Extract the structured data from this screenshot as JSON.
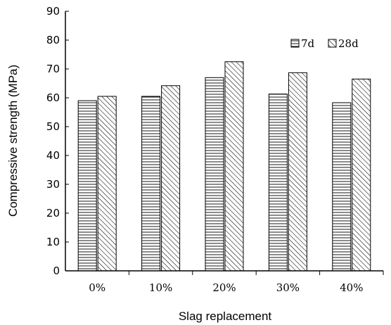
{
  "chart_data": {
    "type": "bar",
    "categories": [
      "0%",
      "10%",
      "20%",
      "30%",
      "40%"
    ],
    "series": [
      {
        "name": "7d",
        "values": [
          59,
          60.5,
          67,
          61.3,
          58.3
        ],
        "pattern": "horizontal-lines"
      },
      {
        "name": "28d",
        "values": [
          60.5,
          64.2,
          72.5,
          68.7,
          66.5
        ],
        "pattern": "diagonal-lines"
      }
    ],
    "xlabel": "Slag replacement",
    "ylabel": "Compressive strength (MPa)",
    "ylim": [
      0,
      90
    ],
    "yticks": [
      "0",
      "10",
      "20",
      "30",
      "40",
      "50",
      "60",
      "70",
      "80",
      "90"
    ],
    "grid": false,
    "legend_position": "top-right",
    "colors": {
      "bar_fill": "#ffffff",
      "stroke": "#000000"
    }
  }
}
